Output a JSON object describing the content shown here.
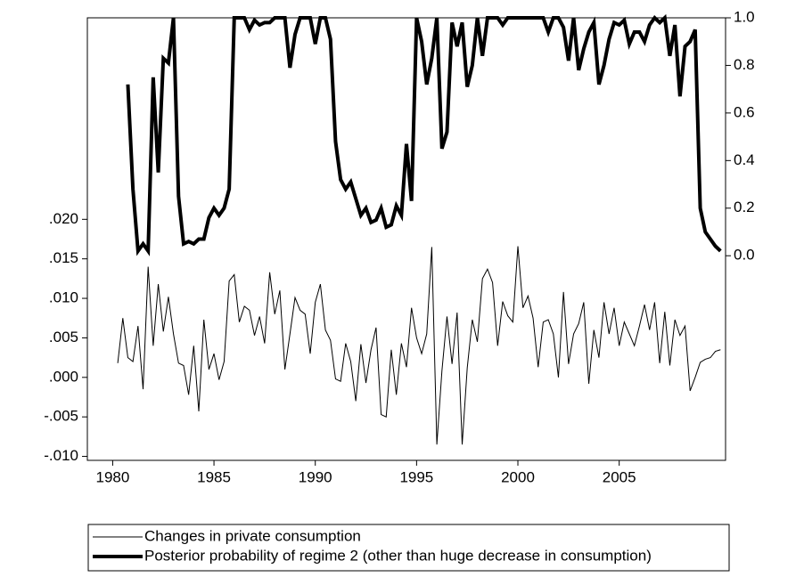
{
  "chart_data": {
    "type": "line",
    "x": [
      1980.25,
      1980.5,
      1980.75,
      1981,
      1981.25,
      1981.5,
      1981.75,
      1982,
      1982.25,
      1982.5,
      1982.75,
      1983,
      1983.25,
      1983.5,
      1983.75,
      1984,
      1984.25,
      1984.5,
      1984.75,
      1985,
      1985.25,
      1985.5,
      1985.75,
      1986,
      1986.25,
      1986.5,
      1986.75,
      1987,
      1987.25,
      1987.5,
      1987.75,
      1988,
      1988.25,
      1988.5,
      1988.75,
      1989,
      1989.25,
      1989.5,
      1989.75,
      1990,
      1990.25,
      1990.5,
      1990.75,
      1991,
      1991.25,
      1991.5,
      1991.75,
      1992,
      1992.25,
      1992.5,
      1992.75,
      1993,
      1993.25,
      1993.5,
      1993.75,
      1994,
      1994.25,
      1994.5,
      1994.75,
      1995,
      1995.25,
      1995.5,
      1995.75,
      1996,
      1996.25,
      1996.5,
      1996.75,
      1997,
      1997.25,
      1997.5,
      1997.75,
      1998,
      1998.25,
      1998.5,
      1998.75,
      1999,
      1999.25,
      1999.5,
      1999.75,
      2000,
      2000.25,
      2000.5,
      2000.75,
      2001,
      2001.25,
      2001.5,
      2001.75,
      2002,
      2002.25,
      2002.5,
      2002.75,
      2003,
      2003.25,
      2003.5,
      2003.75,
      2004,
      2004.25,
      2004.5,
      2004.75,
      2005,
      2005.25,
      2005.5,
      2005.75,
      2006,
      2006.25,
      2006.5,
      2006.75,
      2007,
      2007.25,
      2007.5,
      2007.75,
      2008,
      2008.25,
      2008.5,
      2008.75,
      2009,
      2009.25,
      2009.5,
      2009.75,
      2010
    ],
    "series": [
      {
        "name": "Changes in private consumption",
        "color": "#000000",
        "width": 1,
        "axis": "y",
        "values": [
          0.0018,
          0.0075,
          0.0025,
          0.002,
          0.0065,
          -0.0015,
          0.014,
          0.004,
          0.0118,
          0.0058,
          0.0102,
          0.0055,
          0.0018,
          0.0015,
          -0.0022,
          0.004,
          -0.0043,
          0.0073,
          0.001,
          0.003,
          -0.0003,
          0.002,
          0.0122,
          0.013,
          0.007,
          0.009,
          0.0085,
          0.0053,
          0.0077,
          0.0043,
          0.0133,
          0.008,
          0.011,
          0.001,
          0.0055,
          0.0101,
          0.0085,
          0.008,
          0.003,
          0.0095,
          0.0118,
          0.006,
          0.0047,
          -0.0002,
          -0.0005,
          0.0043,
          0.002,
          -0.003,
          0.0042,
          -0.0007,
          0.0035,
          0.0063,
          -0.0047,
          -0.005,
          0.0035,
          -0.0022,
          0.0043,
          0.0013,
          0.0088,
          0.005,
          0.003,
          0.0055,
          0.0165,
          -0.0085,
          0.0008,
          0.0077,
          0.0017,
          0.0082,
          -0.0085,
          0.0012,
          0.0073,
          0.0045,
          0.0125,
          0.0137,
          0.012,
          0.004,
          0.0096,
          0.0078,
          0.007,
          0.0166,
          0.0088,
          0.0103,
          0.0075,
          0.0013,
          0.007,
          0.0073,
          0.0055,
          0.0,
          0.0108,
          0.0017,
          0.0055,
          0.0068,
          0.0095,
          -0.0008,
          0.006,
          0.0025,
          0.0095,
          0.0055,
          0.0088,
          0.004,
          0.007,
          0.0055,
          0.004,
          0.0065,
          0.0092,
          0.006,
          0.0095,
          0.0018,
          0.0083,
          0.0015,
          0.0073,
          0.0053,
          0.0065,
          -0.0017,
          0.0,
          0.0019,
          0.0023,
          0.0025,
          0.0033,
          0.0035
        ]
      },
      {
        "name": "Posterior probability of regime 2 (other than huge decrease in consumption)",
        "color": "#000000",
        "width": 4,
        "axis": "y2",
        "values": [
          null,
          null,
          0.72,
          0.28,
          0.02,
          0.05,
          0.02,
          0.75,
          0.35,
          0.83,
          0.81,
          1.0,
          0.25,
          0.05,
          0.06,
          0.05,
          0.07,
          0.07,
          0.16,
          0.2,
          0.17,
          0.2,
          0.28,
          1.0,
          1.0,
          1.0,
          0.95,
          0.99,
          0.97,
          0.98,
          0.98,
          1.0,
          1.0,
          1.0,
          0.79,
          0.93,
          1.0,
          1.0,
          1.0,
          0.89,
          1.0,
          1.0,
          0.91,
          0.48,
          0.32,
          0.28,
          0.31,
          0.24,
          0.17,
          0.2,
          0.14,
          0.15,
          0.2,
          0.12,
          0.13,
          0.21,
          0.17,
          0.47,
          0.23,
          1.0,
          0.9,
          0.72,
          0.83,
          1.0,
          0.45,
          0.52,
          0.98,
          0.88,
          0.98,
          0.71,
          0.8,
          1.0,
          0.84,
          1.0,
          1.0,
          1.0,
          0.97,
          1.0,
          1.0,
          1.0,
          1.0,
          1.0,
          1.0,
          1.0,
          1.0,
          0.94,
          1.0,
          1.0,
          0.96,
          0.82,
          1.0,
          0.78,
          0.87,
          0.94,
          0.98,
          0.72,
          0.8,
          0.91,
          0.98,
          0.97,
          0.99,
          0.89,
          0.94,
          0.94,
          0.9,
          0.97,
          1.0,
          0.98,
          1.0,
          0.84,
          0.97,
          0.67,
          0.88,
          0.9,
          0.95,
          0.2,
          0.1,
          0.07,
          0.04,
          0.02
        ]
      }
    ],
    "xlim": [
      1978.75,
      2010.25
    ],
    "xticks": [
      1980,
      1985,
      1990,
      1995,
      2000,
      2005
    ],
    "ylim": [
      -0.0105,
      0.0455
    ],
    "yticks": [
      {
        "value": -0.01,
        "label": "-.010"
      },
      {
        "value": -0.005,
        "label": "-.005"
      },
      {
        "value": 0,
        "label": ".000"
      },
      {
        "value": 0.005,
        "label": ".005"
      },
      {
        "value": 0.01,
        "label": ".010"
      },
      {
        "value": 0.015,
        "label": ".015"
      },
      {
        "value": 0.02,
        "label": ".020"
      }
    ],
    "y2lim": [
      -0.86,
      1.0
    ],
    "y2ticks": [
      {
        "value": 0,
        "label": "0.0"
      },
      {
        "value": 0.2,
        "label": "0.2"
      },
      {
        "value": 0.4,
        "label": "0.4"
      },
      {
        "value": 0.6,
        "label": "0.6"
      },
      {
        "value": 0.8,
        "label": "0.8"
      },
      {
        "value": 1,
        "label": "1.0"
      }
    ],
    "grid": false
  }
}
